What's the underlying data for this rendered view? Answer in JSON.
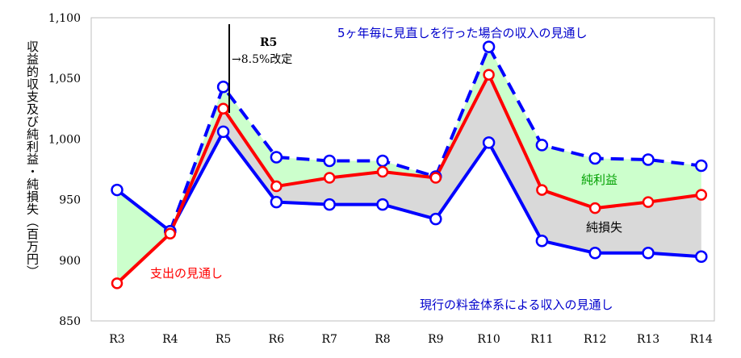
{
  "chart_data": {
    "type": "line",
    "ylabel": "収益的収支及び純利益・純損失（百万円）",
    "ylim": [
      850,
      1100
    ],
    "yticks": [
      850,
      900,
      950,
      1000,
      1050,
      1100
    ],
    "ytick_labels": [
      "850",
      "900",
      "950",
      "1,000",
      "1,050",
      "1,100"
    ],
    "categories": [
      "R3",
      "R4",
      "R5",
      "R6",
      "R7",
      "R8",
      "R9",
      "R10",
      "R11",
      "R12",
      "R13",
      "R14"
    ],
    "series": [
      {
        "key": "revision",
        "values": [
          null,
          924,
          1043,
          985,
          982,
          982,
          969,
          1076,
          995,
          984,
          983,
          978
        ],
        "color": "#0000ff",
        "style": "dashed"
      },
      {
        "key": "current",
        "values": [
          958,
          924,
          1006,
          948,
          946,
          946,
          934,
          997,
          916,
          906,
          906,
          903
        ],
        "color": "#0000ff",
        "style": "solid"
      },
      {
        "key": "expense",
        "values": [
          881,
          922,
          1025,
          961,
          968,
          973,
          968,
          1053,
          958,
          943,
          948,
          954
        ],
        "color": "#ff0000",
        "style": "solid"
      }
    ],
    "fills": {
      "profit_color": "#ccffcc",
      "loss_color": "#d9d9d9"
    },
    "annotations": {
      "r5_title": "R5",
      "r5_text": "→8.5%改定",
      "revision_label": "5ヶ年毎に見直しを行った場合の収入の見通し",
      "current_label": "現行の料金体系による収入の見通し",
      "expense_label": "支出の見通し",
      "profit_label": "純利益",
      "loss_label": "純損失"
    }
  }
}
